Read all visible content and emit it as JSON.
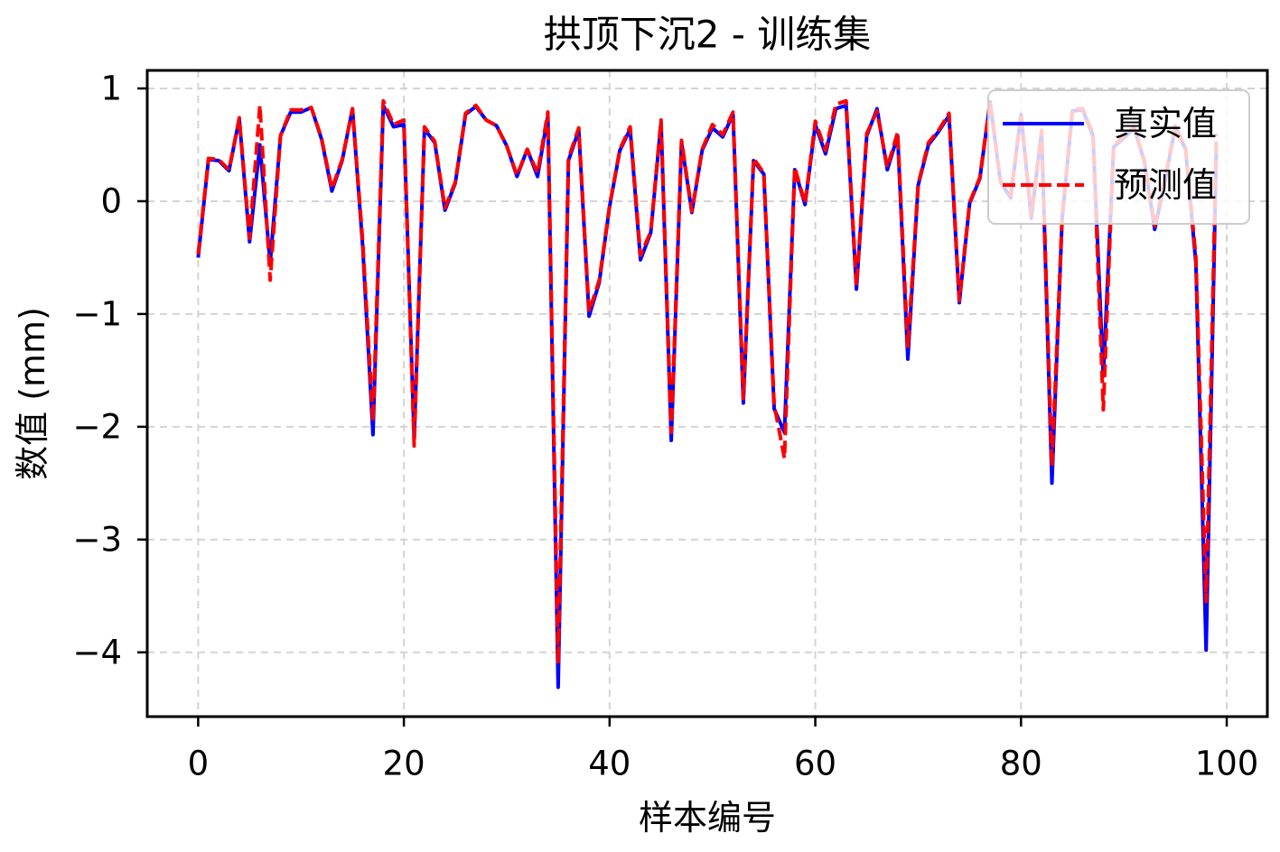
{
  "chart_data": {
    "type": "line",
    "title": "拱顶下沉2 - 训练集",
    "xlabel": "样本编号",
    "ylabel": "数值 (mm)",
    "xlim": [
      -4.95,
      103.95
    ],
    "ylim": [
      -4.57,
      1.16
    ],
    "xticks": [
      0,
      20,
      40,
      60,
      80,
      100
    ],
    "xtick_labels": [
      "0",
      "20",
      "40",
      "60",
      "80",
      "100"
    ],
    "yticks": [
      1,
      0,
      -1,
      -2,
      -3,
      -4
    ],
    "ytick_labels": [
      "1",
      "0",
      "−1",
      "−2",
      "−3",
      "−4"
    ],
    "grid": true,
    "legend_position": "top-right",
    "x": [
      0,
      1,
      2,
      3,
      4,
      5,
      6,
      7,
      8,
      9,
      10,
      11,
      12,
      13,
      14,
      15,
      16,
      17,
      18,
      19,
      20,
      21,
      22,
      23,
      24,
      25,
      26,
      27,
      28,
      29,
      30,
      31,
      32,
      33,
      34,
      35,
      36,
      37,
      38,
      39,
      40,
      41,
      42,
      43,
      44,
      45,
      46,
      47,
      48,
      49,
      50,
      51,
      52,
      53,
      54,
      55,
      56,
      57,
      58,
      59,
      60,
      61,
      62,
      63,
      64,
      65,
      66,
      67,
      68,
      69,
      70,
      71,
      72,
      73,
      74,
      75,
      76,
      77,
      78,
      79,
      80,
      81,
      82,
      83,
      84,
      85,
      86,
      87,
      88,
      89,
      90,
      91,
      92,
      93,
      94,
      95,
      96,
      97,
      98,
      99
    ],
    "series": [
      {
        "name": "真实值",
        "color": "#0000ff",
        "style": "solid",
        "values": [
          -0.5,
          0.37,
          0.36,
          0.27,
          0.73,
          -0.36,
          0.5,
          -0.55,
          0.58,
          0.79,
          0.79,
          0.83,
          0.55,
          0.09,
          0.36,
          0.82,
          -0.4,
          -2.07,
          0.85,
          0.66,
          0.68,
          -2.1,
          0.64,
          0.52,
          -0.08,
          0.16,
          0.77,
          0.84,
          0.72,
          0.67,
          0.49,
          0.22,
          0.46,
          0.22,
          0.76,
          -4.31,
          0.36,
          0.63,
          -1.02,
          -0.72,
          -0.05,
          0.45,
          0.64,
          -0.52,
          -0.28,
          0.7,
          -2.12,
          0.52,
          -0.1,
          0.45,
          0.65,
          0.57,
          0.77,
          -1.79,
          0.36,
          0.24,
          -1.84,
          -2.05,
          0.28,
          -0.03,
          0.68,
          0.42,
          0.82,
          0.85,
          -0.78,
          0.58,
          0.82,
          0.28,
          0.58,
          -1.4,
          0.14,
          0.5,
          0.62,
          0.76,
          -0.9,
          -0.02,
          0.2,
          0.88,
          0.17,
          0.03,
          0.77,
          -0.15,
          0.62,
          -2.5,
          -0.16,
          0.8,
          0.81,
          0.58,
          -1.55,
          0.48,
          0.56,
          0.65,
          0.35,
          -0.25,
          0.18,
          0.66,
          0.46,
          -0.55,
          -3.98,
          0.5
        ]
      },
      {
        "name": "预测值",
        "color": "#ff0000",
        "style": "dashed",
        "values": [
          -0.47,
          0.38,
          0.37,
          0.28,
          0.74,
          -0.33,
          0.85,
          -0.7,
          0.58,
          0.81,
          0.81,
          0.83,
          0.56,
          0.11,
          0.37,
          0.82,
          -0.35,
          -1.95,
          0.89,
          0.68,
          0.72,
          -2.17,
          0.66,
          0.53,
          -0.06,
          0.17,
          0.78,
          0.85,
          0.72,
          0.67,
          0.49,
          0.23,
          0.46,
          0.25,
          0.79,
          -4.1,
          0.38,
          0.65,
          -0.98,
          -0.7,
          -0.04,
          0.46,
          0.66,
          -0.48,
          -0.27,
          0.72,
          -2.05,
          0.54,
          -0.09,
          0.46,
          0.68,
          0.59,
          0.79,
          -1.75,
          0.38,
          0.25,
          -1.8,
          -2.28,
          0.3,
          -0.02,
          0.71,
          0.45,
          0.86,
          0.89,
          -0.75,
          0.6,
          0.8,
          0.3,
          0.61,
          -1.3,
          0.15,
          0.52,
          0.63,
          0.78,
          -0.88,
          -0.01,
          0.21,
          0.89,
          0.18,
          0.05,
          0.78,
          -0.13,
          0.63,
          -2.35,
          -0.14,
          0.82,
          0.82,
          0.6,
          -1.85,
          0.5,
          0.57,
          0.66,
          0.36,
          -0.22,
          0.2,
          0.67,
          0.47,
          -0.5,
          -3.55,
          0.6
        ]
      }
    ]
  }
}
